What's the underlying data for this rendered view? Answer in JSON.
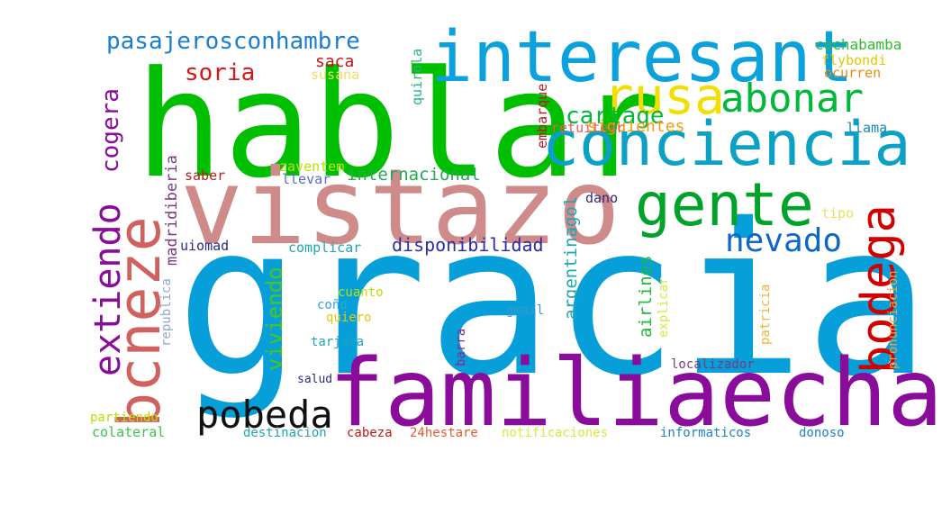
{
  "words": [
    {
      "text": "gracias",
      "color": "#069fd9"
    },
    {
      "text": "hablar",
      "color": "#00bf00"
    },
    {
      "text": "vistazo",
      "color": "#cf8a8a"
    },
    {
      "text": "familiaecha",
      "color": "#8a0c9b"
    },
    {
      "text": "interesant",
      "color": "#0aa1dd"
    },
    {
      "text": "conciencia",
      "color": "#0aa1c4"
    },
    {
      "text": "gente",
      "color": "#00a32a"
    },
    {
      "text": "bcneze",
      "color": "#cf625e"
    },
    {
      "text": "rusa",
      "color": "#f2df00"
    },
    {
      "text": "abonar",
      "color": "#00b83a"
    },
    {
      "text": "bodega",
      "color": "#d10000"
    },
    {
      "text": "pobeda",
      "color": "#111111"
    },
    {
      "text": "extiendo",
      "color": "#8a0c9b"
    },
    {
      "text": "nevado",
      "color": "#0f66c8"
    },
    {
      "text": "pasajerosconhambre",
      "color": "#1c7ed1"
    },
    {
      "text": "cogera",
      "color": "#8a0c9b"
    },
    {
      "text": "soria",
      "color": "#d81818"
    },
    {
      "text": "cartage",
      "color": "#00b83a"
    },
    {
      "text": "viviendo",
      "color": "#4cc41e"
    },
    {
      "text": "disponibilidad",
      "color": "#2d2ca8"
    },
    {
      "text": "internacional",
      "color": "#24aa57"
    },
    {
      "text": "siguientes",
      "color": "#f59a11"
    },
    {
      "text": "saca",
      "color": "#c21515"
    },
    {
      "text": "argentinagol",
      "color": "#1ba7b5"
    },
    {
      "text": "airlines",
      "color": "#1fba3a"
    },
    {
      "text": "madridiberia",
      "color": "#7a3b7f"
    },
    {
      "text": "cochabamba",
      "color": "#30ba30"
    },
    {
      "text": "flybondi",
      "color": "#e9c600"
    },
    {
      "text": "ocurren",
      "color": "#e98a13"
    },
    {
      "text": "llama",
      "color": "#1a84c9"
    },
    {
      "text": "retuitear",
      "color": "#e65a5a"
    },
    {
      "text": "embarque",
      "color": "#b21e1e"
    },
    {
      "text": "quirola",
      "color": "#27b77a"
    },
    {
      "text": "susana",
      "color": "#f2dc60"
    },
    {
      "text": "zaventem",
      "color": "#b7e200"
    },
    {
      "text": "saber",
      "color": "#b21e1e"
    },
    {
      "text": "llevar",
      "color": "#4f6fcf"
    },
    {
      "text": "dano",
      "color": "#2b2b84"
    },
    {
      "text": "tipo",
      "color": "#f2dc60"
    },
    {
      "text": "uiomad",
      "color": "#2b2b84"
    },
    {
      "text": "complicar",
      "color": "#1ba7b5"
    },
    {
      "text": "pronunciacion",
      "color": "#f2a13a"
    },
    {
      "text": "patricia",
      "color": "#f2b23a"
    },
    {
      "text": "explicar",
      "color": "#d5ea3a"
    },
    {
      "text": "republica",
      "color": "#8fa6d6"
    },
    {
      "text": "cuanto",
      "color": "#b7e200"
    },
    {
      "text": "coño",
      "color": "#2fa8d8"
    },
    {
      "text": "quiero",
      "color": "#e6c900"
    },
    {
      "text": "gmail",
      "color": "#3a98c8"
    },
    {
      "text": "barra",
      "color": "#8a2a8a"
    },
    {
      "text": "tarjeta",
      "color": "#1ba7b5"
    },
    {
      "text": "localizador",
      "color": "#7a3b7f"
    },
    {
      "text": "salud",
      "color": "#2b2b84"
    },
    {
      "text": "partiendo",
      "color": "#b7e200"
    },
    {
      "text": "colateral",
      "color": "#39c451"
    },
    {
      "text": "destinacion",
      "color": "#1ba7b5"
    },
    {
      "text": "cabeza",
      "color": "#c21515"
    },
    {
      "text": "24hestare",
      "color": "#e65a2a"
    },
    {
      "text": "notificaciones",
      "color": "#d5ea3a"
    },
    {
      "text": "informaticos",
      "color": "#1a84c9"
    },
    {
      "text": "donoso",
      "color": "#1a84c9"
    }
  ]
}
